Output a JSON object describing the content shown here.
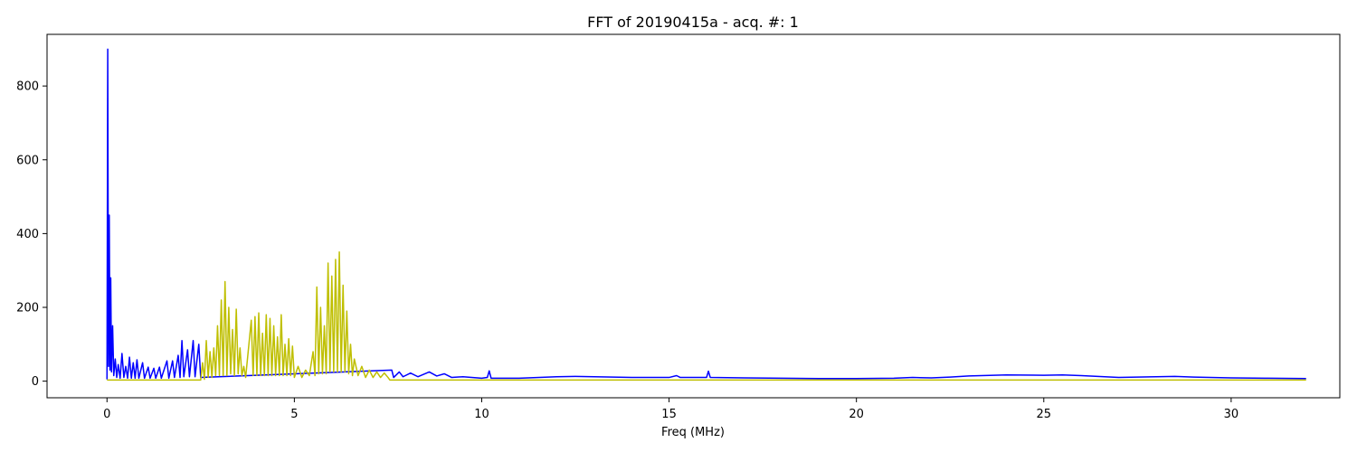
{
  "chart_data": {
    "type": "line",
    "title": "FFT of 20190415a - acq. #: 1",
    "xlabel": "Freq (MHz)",
    "ylabel": "",
    "xlim": [
      -1.6,
      32.9
    ],
    "ylim": [
      -45,
      940
    ],
    "xticks": [
      0,
      5,
      10,
      15,
      20,
      25,
      30
    ],
    "yticks": [
      0,
      200,
      400,
      600,
      800
    ],
    "xtick_labels": [
      "0",
      "5",
      "10",
      "15",
      "20",
      "25",
      "30"
    ],
    "ytick_labels": [
      "0",
      "200",
      "400",
      "600",
      "800"
    ],
    "grid": false,
    "legend": "none",
    "series": [
      {
        "color": "#0000ff",
        "points": [
          [
            0.0,
            5
          ],
          [
            0.02,
            900
          ],
          [
            0.04,
            40
          ],
          [
            0.06,
            450
          ],
          [
            0.08,
            30
          ],
          [
            0.1,
            280
          ],
          [
            0.12,
            25
          ],
          [
            0.15,
            150
          ],
          [
            0.18,
            15
          ],
          [
            0.22,
            60
          ],
          [
            0.26,
            10
          ],
          [
            0.3,
            45
          ],
          [
            0.35,
            8
          ],
          [
            0.4,
            75
          ],
          [
            0.45,
            10
          ],
          [
            0.5,
            40
          ],
          [
            0.55,
            8
          ],
          [
            0.6,
            65
          ],
          [
            0.65,
            8
          ],
          [
            0.7,
            50
          ],
          [
            0.75,
            8
          ],
          [
            0.8,
            58
          ],
          [
            0.85,
            8
          ],
          [
            0.95,
            50
          ],
          [
            1.0,
            8
          ],
          [
            1.1,
            38
          ],
          [
            1.15,
            8
          ],
          [
            1.25,
            35
          ],
          [
            1.3,
            8
          ],
          [
            1.4,
            38
          ],
          [
            1.45,
            8
          ],
          [
            1.6,
            55
          ],
          [
            1.65,
            8
          ],
          [
            1.75,
            55
          ],
          [
            1.8,
            10
          ],
          [
            1.9,
            70
          ],
          [
            1.95,
            10
          ],
          [
            2.0,
            110
          ],
          [
            2.05,
            12
          ],
          [
            2.15,
            85
          ],
          [
            2.2,
            12
          ],
          [
            2.3,
            110
          ],
          [
            2.35,
            12
          ],
          [
            2.45,
            100
          ],
          [
            2.5,
            10
          ],
          [
            7.6,
            30
          ],
          [
            7.65,
            10
          ],
          [
            7.8,
            25
          ],
          [
            7.9,
            12
          ],
          [
            8.1,
            22
          ],
          [
            8.3,
            12
          ],
          [
            8.6,
            25
          ],
          [
            8.8,
            14
          ],
          [
            9.0,
            20
          ],
          [
            9.2,
            10
          ],
          [
            9.5,
            12
          ],
          [
            10.0,
            8
          ],
          [
            10.15,
            10
          ],
          [
            10.2,
            28
          ],
          [
            10.25,
            8
          ],
          [
            11.0,
            8
          ],
          [
            12.0,
            12
          ],
          [
            12.5,
            13
          ],
          [
            13.0,
            12
          ],
          [
            14.0,
            10
          ],
          [
            15.0,
            10
          ],
          [
            15.2,
            15
          ],
          [
            15.3,
            10
          ],
          [
            16.0,
            10
          ],
          [
            16.05,
            27
          ],
          [
            16.1,
            10
          ],
          [
            17.0,
            9
          ],
          [
            18.0,
            8
          ],
          [
            19.0,
            7
          ],
          [
            20.0,
            7
          ],
          [
            21.0,
            8
          ],
          [
            21.5,
            10
          ],
          [
            22.0,
            9
          ],
          [
            22.5,
            11
          ],
          [
            23.0,
            14
          ],
          [
            24.0,
            17
          ],
          [
            25.0,
            16
          ],
          [
            25.5,
            17
          ],
          [
            26.0,
            15
          ],
          [
            27.0,
            10
          ],
          [
            28.0,
            12
          ],
          [
            28.5,
            13
          ],
          [
            29.0,
            11
          ],
          [
            30.0,
            9
          ],
          [
            31.0,
            8
          ],
          [
            32.0,
            7
          ]
        ]
      },
      {
        "color": "#bfbf00",
        "points": [
          [
            0.0,
            3
          ],
          [
            2.5,
            3
          ],
          [
            2.55,
            50
          ],
          [
            2.6,
            5
          ],
          [
            2.65,
            110
          ],
          [
            2.7,
            10
          ],
          [
            2.75,
            80
          ],
          [
            2.8,
            10
          ],
          [
            2.85,
            90
          ],
          [
            2.9,
            15
          ],
          [
            2.95,
            150
          ],
          [
            3.0,
            15
          ],
          [
            3.05,
            220
          ],
          [
            3.1,
            15
          ],
          [
            3.15,
            270
          ],
          [
            3.2,
            15
          ],
          [
            3.25,
            200
          ],
          [
            3.3,
            20
          ],
          [
            3.35,
            140
          ],
          [
            3.4,
            15
          ],
          [
            3.45,
            195
          ],
          [
            3.5,
            20
          ],
          [
            3.55,
            90
          ],
          [
            3.6,
            15
          ],
          [
            3.65,
            40
          ],
          [
            3.7,
            10
          ],
          [
            3.85,
            165
          ],
          [
            3.9,
            15
          ],
          [
            3.95,
            175
          ],
          [
            4.0,
            15
          ],
          [
            4.05,
            185
          ],
          [
            4.1,
            15
          ],
          [
            4.15,
            130
          ],
          [
            4.2,
            15
          ],
          [
            4.25,
            180
          ],
          [
            4.3,
            15
          ],
          [
            4.35,
            170
          ],
          [
            4.4,
            15
          ],
          [
            4.45,
            150
          ],
          [
            4.5,
            15
          ],
          [
            4.55,
            120
          ],
          [
            4.6,
            15
          ],
          [
            4.65,
            180
          ],
          [
            4.7,
            15
          ],
          [
            4.75,
            100
          ],
          [
            4.8,
            15
          ],
          [
            4.85,
            115
          ],
          [
            4.9,
            15
          ],
          [
            4.95,
            95
          ],
          [
            5.0,
            10
          ],
          [
            5.1,
            40
          ],
          [
            5.2,
            10
          ],
          [
            5.3,
            30
          ],
          [
            5.4,
            15
          ],
          [
            5.5,
            80
          ],
          [
            5.55,
            15
          ],
          [
            5.6,
            255
          ],
          [
            5.65,
            20
          ],
          [
            5.7,
            200
          ],
          [
            5.75,
            20
          ],
          [
            5.8,
            150
          ],
          [
            5.85,
            20
          ],
          [
            5.9,
            320
          ],
          [
            5.95,
            25
          ],
          [
            6.0,
            285
          ],
          [
            6.05,
            25
          ],
          [
            6.1,
            330
          ],
          [
            6.15,
            25
          ],
          [
            6.2,
            350
          ],
          [
            6.25,
            25
          ],
          [
            6.3,
            260
          ],
          [
            6.35,
            25
          ],
          [
            6.4,
            190
          ],
          [
            6.45,
            20
          ],
          [
            6.5,
            100
          ],
          [
            6.55,
            15
          ],
          [
            6.6,
            60
          ],
          [
            6.7,
            15
          ],
          [
            6.8,
            40
          ],
          [
            6.9,
            10
          ],
          [
            7.0,
            30
          ],
          [
            7.1,
            10
          ],
          [
            7.2,
            25
          ],
          [
            7.3,
            10
          ],
          [
            7.4,
            22
          ],
          [
            7.5,
            10
          ],
          [
            7.55,
            3
          ],
          [
            32.0,
            3
          ]
        ]
      }
    ]
  }
}
